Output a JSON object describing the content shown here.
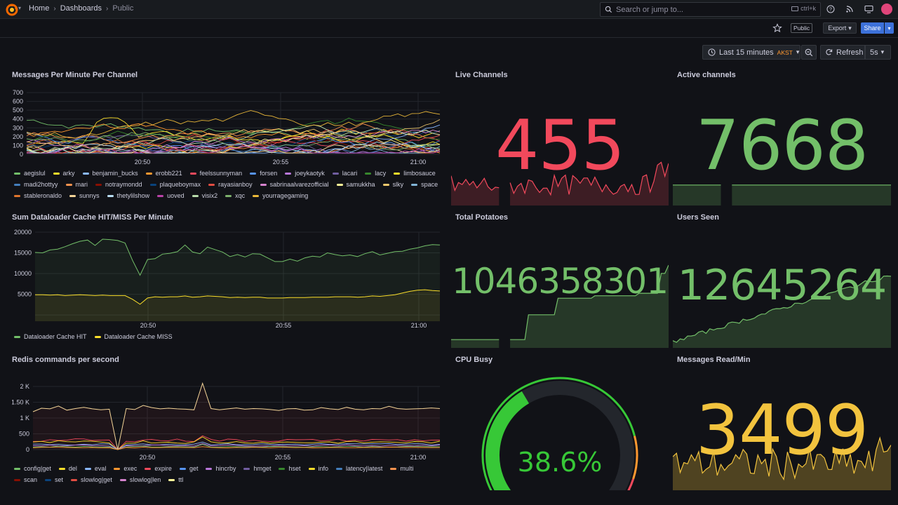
{
  "header": {
    "crumbs": [
      "Home",
      "Dashboards",
      "Public"
    ],
    "search_placeholder": "Search or jump to...",
    "search_shortcut": "ctrl+k",
    "icons": [
      "help-icon",
      "news-icon",
      "profile-icon"
    ]
  },
  "toolbar": {
    "public_label": "Public",
    "export_label": "Export",
    "share_label": "Share",
    "time_range": "Last 15 minutes",
    "timezone": "AKST",
    "refresh_label": "Refresh",
    "refresh_interval": "5s"
  },
  "colors": {
    "green": "#73bf69",
    "red": "#f2495c",
    "yellow": "#fade2a",
    "amber": "#f2c33e",
    "blue": "#5794f2",
    "orange": "#ff9830"
  },
  "panels": {
    "messages_per_minute": {
      "title": "Messages Per Minute Per Channel",
      "y_ticks": [
        "700",
        "600",
        "500",
        "400",
        "300",
        "200",
        "100",
        "0"
      ],
      "x_ticks": [
        "20:50",
        "20:55",
        "21:00"
      ],
      "legend": [
        {
          "name": "aegislul",
          "color": "#73bf69"
        },
        {
          "name": "arky",
          "color": "#fade2a"
        },
        {
          "name": "benjamin_bucks",
          "color": "#8ab8ff"
        },
        {
          "name": "erobb221",
          "color": "#ff9830"
        },
        {
          "name": "feelssunnyman",
          "color": "#f2495c"
        },
        {
          "name": "forsen",
          "color": "#5794f2"
        },
        {
          "name": "joeykaotyk",
          "color": "#b877d9"
        },
        {
          "name": "lacari",
          "color": "#705da0"
        },
        {
          "name": "lacy",
          "color": "#37872d"
        },
        {
          "name": "limbosauce",
          "color": "#fade2a"
        },
        {
          "name": "madi2hottyy",
          "color": "#447ebc"
        },
        {
          "name": "mari",
          "color": "#f9934e"
        },
        {
          "name": "notraymondd",
          "color": "#890f02"
        },
        {
          "name": "plaqueboymax",
          "color": "#0a437c"
        },
        {
          "name": "rayasianboy",
          "color": "#e24d42"
        },
        {
          "name": "sabrinaalvarezofficial",
          "color": "#d683ce"
        },
        {
          "name": "samukkha",
          "color": "#fff899"
        },
        {
          "name": "slky",
          "color": "#f2c96d"
        },
        {
          "name": "space",
          "color": "#82b5d8"
        },
        {
          "name": "stableronaldo",
          "color": "#e0752d"
        },
        {
          "name": "sunnys",
          "color": "#f4d598"
        },
        {
          "name": "thetylilshow",
          "color": "#badff4"
        },
        {
          "name": "uoved",
          "color": "#ba43a9"
        },
        {
          "name": "visix2",
          "color": "#b7dbab"
        },
        {
          "name": "xqc",
          "color": "#7eb26d"
        },
        {
          "name": "yourragegaming",
          "color": "#eab839"
        }
      ]
    },
    "dataloader": {
      "title": "Sum Dataloader Cache HIT/MISS Per Minute",
      "y_ticks": [
        "20000",
        "15000",
        "10000",
        "5000"
      ],
      "x_ticks": [
        "20:50",
        "20:55",
        "21:00"
      ],
      "legend": [
        {
          "name": "Dataloader Cache HIT",
          "color": "#73bf69"
        },
        {
          "name": "Dataloader Cache MISS",
          "color": "#fade2a"
        }
      ]
    },
    "redis": {
      "title": "Redis commands per second",
      "y_ticks": [
        "2 K",
        "1.50 K",
        "1 K",
        "500",
        "0"
      ],
      "x_ticks": [
        "20:50",
        "20:55",
        "21:00"
      ],
      "legend": [
        {
          "name": "config|get",
          "color": "#73bf69"
        },
        {
          "name": "del",
          "color": "#fade2a"
        },
        {
          "name": "eval",
          "color": "#8ab8ff"
        },
        {
          "name": "exec",
          "color": "#ff9830"
        },
        {
          "name": "expire",
          "color": "#f2495c"
        },
        {
          "name": "get",
          "color": "#5794f2"
        },
        {
          "name": "hincrby",
          "color": "#b877d9"
        },
        {
          "name": "hmget",
          "color": "#705da0"
        },
        {
          "name": "hset",
          "color": "#37872d"
        },
        {
          "name": "info",
          "color": "#fade2a"
        },
        {
          "name": "latency|latest",
          "color": "#447ebc"
        },
        {
          "name": "multi",
          "color": "#f9934e"
        },
        {
          "name": "scan",
          "color": "#890f02"
        },
        {
          "name": "set",
          "color": "#0a437c"
        },
        {
          "name": "slowlog|get",
          "color": "#e24d42"
        },
        {
          "name": "slowlog|len",
          "color": "#d683ce"
        },
        {
          "name": "ttl",
          "color": "#fff899"
        }
      ]
    },
    "live_channels": {
      "title": "Live Channels",
      "value": "455",
      "color": "#f2495c"
    },
    "active_channels": {
      "title": "Active channels",
      "value": "7668",
      "color": "#73bf69"
    },
    "total_potatoes": {
      "title": "Total Potatoes",
      "value": "1046358301",
      "color": "#73bf69"
    },
    "users_seen": {
      "title": "Users Seen",
      "value": "12645264",
      "color": "#73bf69"
    },
    "cpu_busy": {
      "title": "CPU Busy",
      "value": "38.6%",
      "percent": 38.6,
      "color": "#37c837"
    },
    "messages_read": {
      "title": "Messages Read/Min",
      "value": "3499",
      "color": "#f2c33e"
    }
  }
}
